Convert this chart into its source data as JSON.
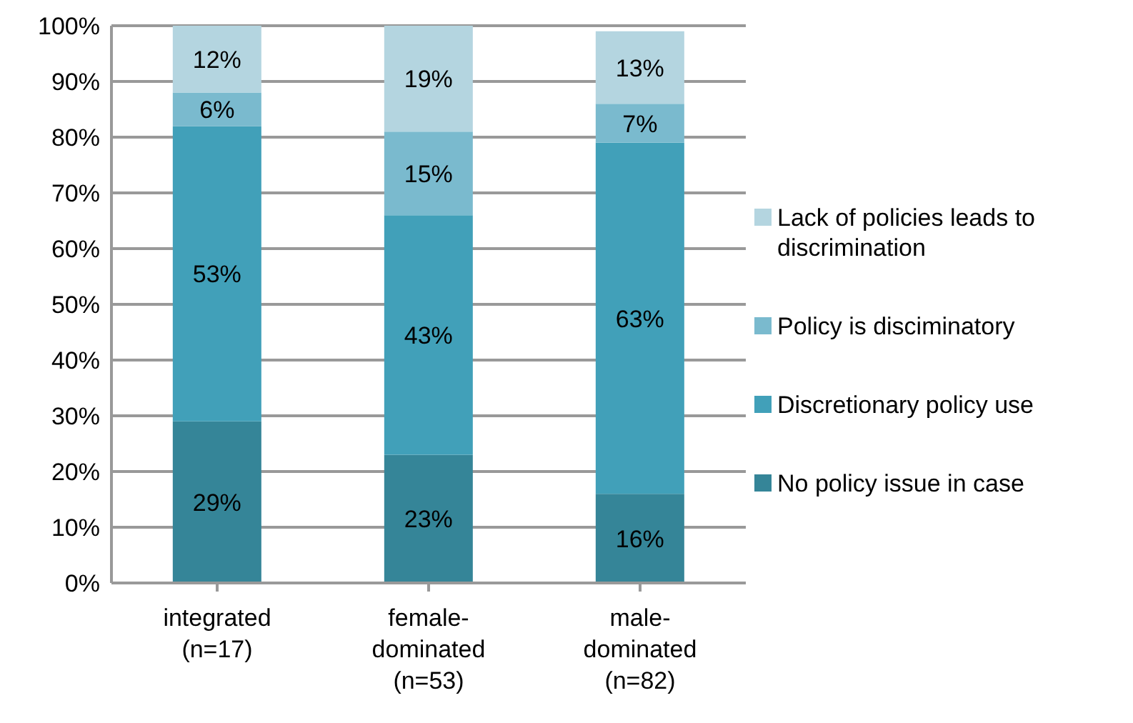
{
  "chart_data": {
    "type": "bar",
    "stacked": true,
    "categories": [
      "integrated\n(n=17)",
      "female-\ndominated\n(n=53)",
      "male-\ndominated\n(n=82)"
    ],
    "series": [
      {
        "name": "No policy issue in case",
        "color": "#358598",
        "values": [
          29,
          23,
          16
        ],
        "value_labels": [
          "29%",
          "23%",
          "16%"
        ]
      },
      {
        "name": "Discretionary policy use",
        "color": "#41a0b9",
        "values": [
          53,
          43,
          63
        ],
        "value_labels": [
          "53%",
          "43%",
          "63%"
        ]
      },
      {
        "name": "Policy is disciminatory",
        "color": "#7abace",
        "values": [
          6,
          15,
          7
        ],
        "value_labels": [
          "6%",
          "15%",
          "7%"
        ]
      },
      {
        "name": "Lack of policies leads to discrimination",
        "color": "#b4d5e0",
        "values": [
          12,
          19,
          13
        ],
        "value_labels": [
          "12%",
          "19%",
          "13%"
        ]
      }
    ],
    "ylim": [
      0,
      100
    ],
    "yticks": [
      {
        "value": 0,
        "label": "0%"
      },
      {
        "value": 10,
        "label": "10%"
      },
      {
        "value": 20,
        "label": "20%"
      },
      {
        "value": 30,
        "label": "30%"
      },
      {
        "value": 40,
        "label": "40%"
      },
      {
        "value": 50,
        "label": "50%"
      },
      {
        "value": 60,
        "label": "60%"
      },
      {
        "value": 70,
        "label": "70%"
      },
      {
        "value": 80,
        "label": "80%"
      },
      {
        "value": 90,
        "label": "90%"
      },
      {
        "value": 100,
        "label": "100%"
      }
    ],
    "grid": "y",
    "legend": "right"
  }
}
